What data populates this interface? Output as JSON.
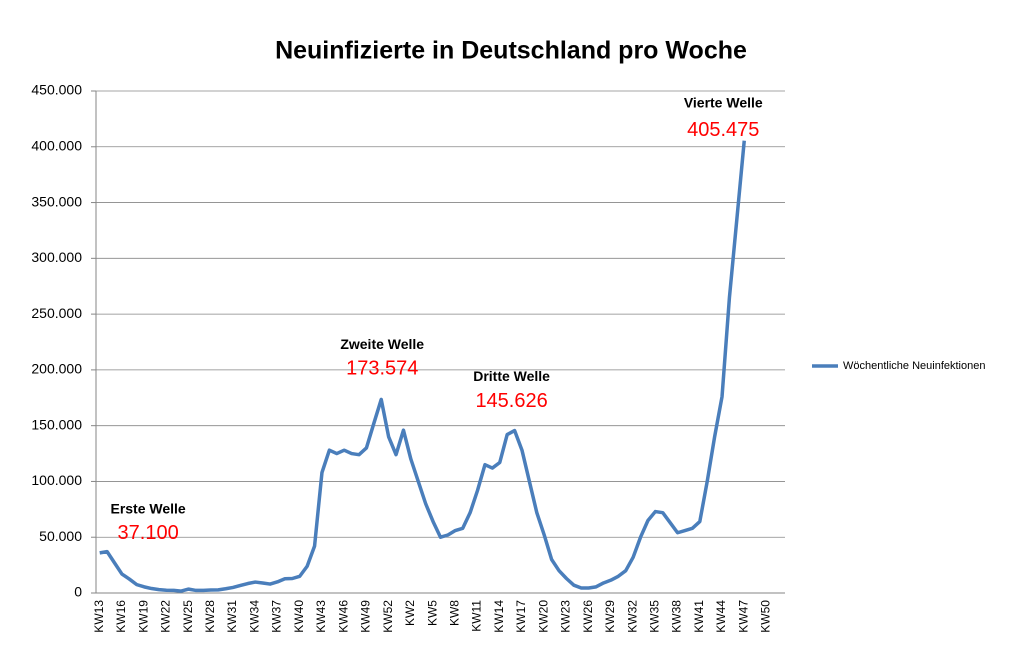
{
  "chart_data": {
    "type": "line",
    "title": "Neuinfizierte in Deutschland pro Woche",
    "categories": [
      "KW13",
      null,
      null,
      "KW16",
      null,
      null,
      "KW19",
      null,
      null,
      "KW22",
      null,
      null,
      "KW25",
      null,
      null,
      "KW28",
      null,
      null,
      "KW31",
      null,
      null,
      "KW34",
      null,
      null,
      "KW37",
      null,
      null,
      "KW40",
      null,
      null,
      "KW43",
      null,
      null,
      "KW46",
      null,
      null,
      "KW49",
      null,
      null,
      "KW52",
      null,
      null,
      "KW2",
      null,
      null,
      "KW5",
      null,
      null,
      "KW8",
      null,
      null,
      "KW11",
      null,
      null,
      "KW14",
      null,
      null,
      "KW17",
      null,
      null,
      "KW20",
      null,
      null,
      "KW23",
      null,
      null,
      "KW26",
      null,
      null,
      "KW29",
      null,
      null,
      "KW32",
      null,
      null,
      "KW35",
      null,
      null,
      "KW38",
      null,
      null,
      "KW41",
      null,
      null,
      "KW44",
      null,
      null,
      "KW47",
      null,
      null,
      "KW50",
      null,
      null
    ],
    "series": [
      {
        "name": "Wöchentliche Neuinfektionen",
        "color": "#4a7ebb",
        "values": [
          36000,
          37100,
          27000,
          17000,
          12500,
          7500,
          5500,
          4000,
          3000,
          2500,
          2300,
          1700,
          3500,
          2300,
          2400,
          2700,
          2800,
          3800,
          5000,
          6800,
          8500,
          9800,
          9000,
          8000,
          10000,
          12800,
          13000,
          15000,
          24000,
          42000,
          108000,
          128000,
          125000,
          128000,
          125000,
          124000,
          130000,
          152000,
          173574,
          140000,
          124000,
          146000,
          120000,
          100000,
          80000,
          64000,
          50000,
          52000,
          56000,
          58000,
          72000,
          92000,
          115000,
          112000,
          117000,
          142000,
          145626,
          128000,
          100000,
          72000,
          52000,
          30000,
          20000,
          13000,
          7000,
          4500,
          4500,
          5500,
          9000,
          11500,
          15000,
          20000,
          32000,
          50000,
          65000,
          73000,
          72000,
          63000,
          54000,
          56000,
          58000,
          64000,
          100000,
          140000,
          176000,
          265000,
          335000,
          405475,
          null,
          null,
          null,
          null,
          null
        ],
        "value_labels": [
          null,
          "37.100",
          null,
          null,
          null,
          null,
          null,
          null,
          null,
          null,
          null,
          null,
          null,
          null,
          null,
          null,
          null,
          null,
          null,
          null,
          null,
          null,
          null,
          null,
          null,
          null,
          null,
          null,
          null,
          null,
          null,
          null,
          null,
          null,
          null,
          null,
          null,
          null,
          "173.574",
          null,
          null,
          null,
          null,
          null,
          null,
          null,
          null,
          null,
          null,
          null,
          null,
          null,
          null,
          null,
          null,
          null,
          "145.626",
          null,
          null,
          null,
          null,
          null,
          null,
          null,
          null,
          null,
          null,
          null,
          null,
          null,
          null,
          null,
          null,
          null,
          null,
          null,
          null,
          null,
          null,
          null,
          null,
          null,
          null,
          null,
          null,
          null,
          null,
          "405.475",
          null,
          null,
          null,
          null,
          null
        ]
      }
    ],
    "annotations": [
      "Erste Welle",
      "Zweite Welle",
      "Dritte Welle",
      "Vierte Welle"
    ],
    "ylim": [
      0,
      450000
    ],
    "yticks": [
      0,
      {
        "value": 50000,
        "label": "50.000"
      },
      {
        "value": 100000,
        "label": "100.000"
      },
      {
        "value": 150000,
        "label": "150.000"
      },
      {
        "value": 200000,
        "label": "200.000"
      },
      {
        "value": 250000,
        "label": "250.000"
      },
      {
        "value": 300000,
        "label": "300.000"
      },
      {
        "value": 350000,
        "label": "350.000"
      },
      {
        "value": 400000,
        "label": "400.000"
      },
      {
        "value": 450000,
        "label": "450.000"
      }
    ],
    "grid": true,
    "legend": "right"
  }
}
